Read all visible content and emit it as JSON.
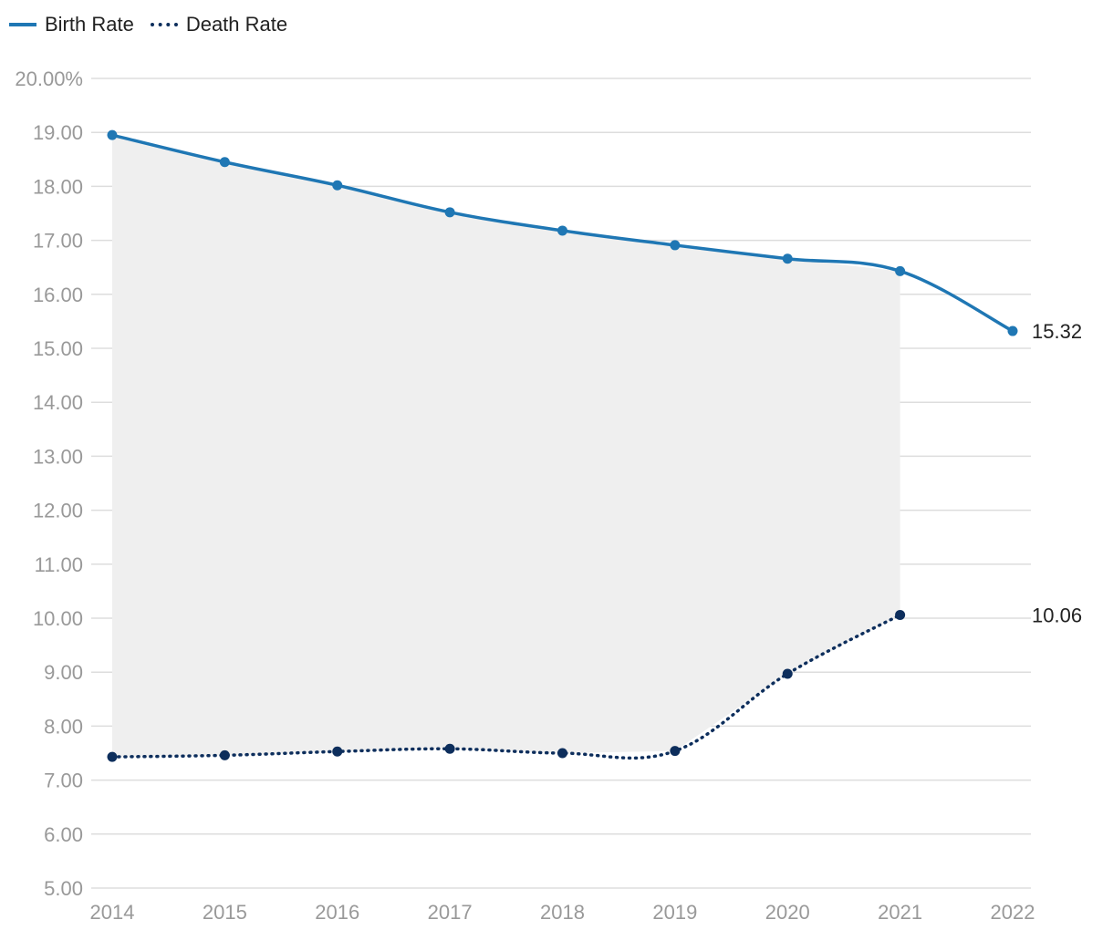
{
  "legend": {
    "birth_label": "Birth Rate",
    "death_label": "Death Rate"
  },
  "colors": {
    "birth": "#1f77b4",
    "death": "#0d2e5c",
    "fill": "#efefef",
    "grid": "#dddddd",
    "tick": "#999999"
  },
  "chart_data": {
    "type": "line",
    "title": "",
    "xlabel": "",
    "ylabel": "",
    "x": [
      "2014",
      "2015",
      "2016",
      "2017",
      "2018",
      "2019",
      "2020",
      "2021",
      "2022"
    ],
    "ylim": [
      5,
      20
    ],
    "yticks": [
      {
        "value": 20,
        "label": "20.00%"
      },
      {
        "value": 19,
        "label": "19.00"
      },
      {
        "value": 18,
        "label": "18.00"
      },
      {
        "value": 17,
        "label": "17.00"
      },
      {
        "value": 16,
        "label": "16.00"
      },
      {
        "value": 15,
        "label": "15.00"
      },
      {
        "value": 14,
        "label": "14.00"
      },
      {
        "value": 13,
        "label": "13.00"
      },
      {
        "value": 12,
        "label": "12.00"
      },
      {
        "value": 11,
        "label": "11.00"
      },
      {
        "value": 10,
        "label": "10.00"
      },
      {
        "value": 9,
        "label": "9.00"
      },
      {
        "value": 8,
        "label": "8.00"
      },
      {
        "value": 7,
        "label": "7.00"
      },
      {
        "value": 6,
        "label": "6.00"
      },
      {
        "value": 5,
        "label": "5.00"
      }
    ],
    "grid": true,
    "legend_position": "top-left",
    "series": [
      {
        "name": "Birth Rate",
        "style": "solid",
        "values": [
          18.95,
          18.45,
          18.02,
          17.52,
          17.18,
          16.91,
          16.66,
          16.43,
          15.32
        ],
        "end_label": "15.32"
      },
      {
        "name": "Death Rate",
        "style": "dotted",
        "values": [
          7.43,
          7.46,
          7.53,
          7.58,
          7.5,
          7.54,
          8.97,
          10.06,
          null
        ],
        "end_label": "10.06"
      }
    ],
    "shaded_gap": {
      "from_index": 0,
      "to_index": 7
    }
  }
}
